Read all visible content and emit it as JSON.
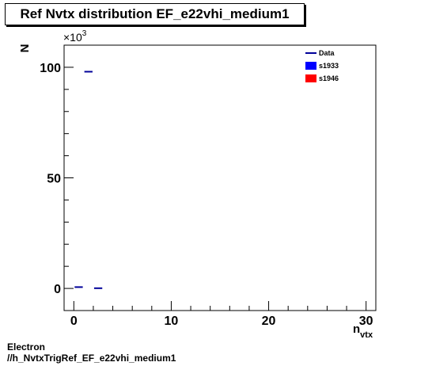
{
  "chart_data": {
    "type": "scatter",
    "title": "Ref Nvtx distribution EF_e22vhi_medium1",
    "xlabel": "n",
    "xlabel_sub": "vtx",
    "ylabel": "N",
    "y_multiplier": "×10",
    "y_multiplier_exp": "3",
    "xlim": [
      -1,
      31
    ],
    "ylim": [
      -10,
      110
    ],
    "y_units_per_label": 1000,
    "x_ticks": [
      0,
      10,
      20,
      30
    ],
    "y_ticks": [
      0,
      50,
      100
    ],
    "x_tick_labels": [
      "0",
      "10",
      "20",
      "30"
    ],
    "y_tick_labels": [
      "0",
      "50",
      "100"
    ],
    "legend": [
      {
        "name": "Data",
        "color": "#000099",
        "style": "line"
      },
      {
        "name": "s1933",
        "color": "#0000ff",
        "style": "box"
      },
      {
        "name": "s1946",
        "color": "#ff0000",
        "style": "box"
      }
    ],
    "legend_position": "top-right",
    "series": [
      {
        "name": "Data",
        "color": "#000099",
        "bin_width": 1,
        "points": [
          {
            "x": 0.5,
            "y": 0.6
          },
          {
            "x": 1.5,
            "y": 98.0
          },
          {
            "x": 2.5,
            "y": 0.1
          }
        ]
      }
    ],
    "grid": false
  },
  "footer": {
    "line1": "Electron",
    "line2": "//h_NvtxTrigRef_EF_e22vhi_medium1"
  }
}
